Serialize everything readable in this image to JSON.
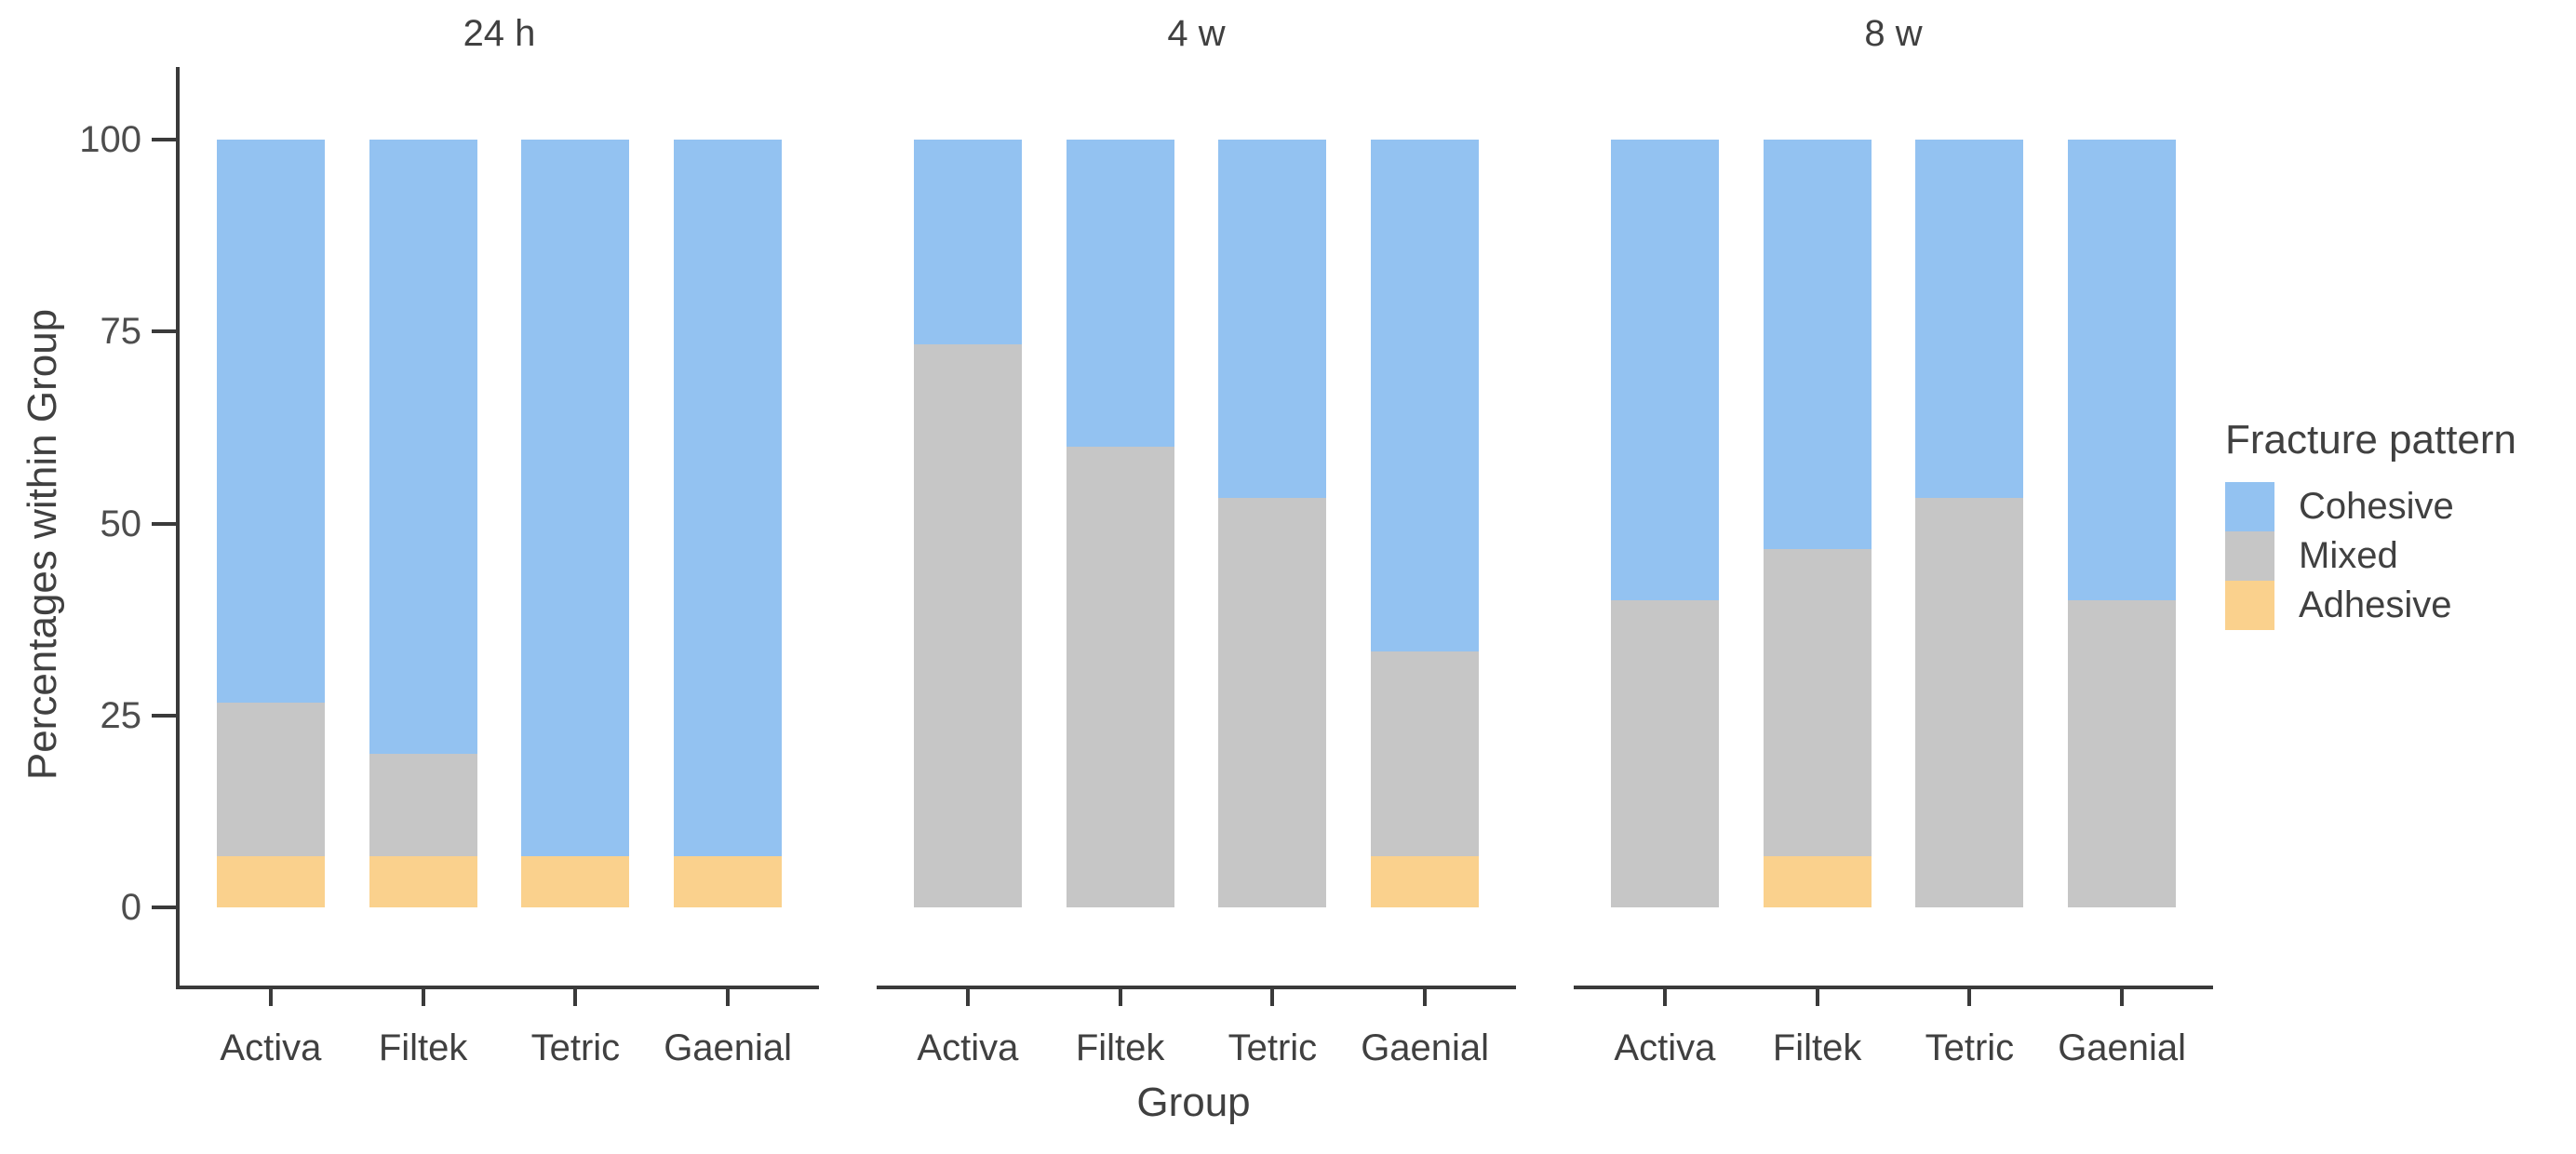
{
  "figure": {
    "background": "#ffffff",
    "axis_color": "#3a3a3a",
    "text_color": "#404040",
    "tick_label_color": "#4d4d4d"
  },
  "chart_data": {
    "type": "bar",
    "stacked": true,
    "orientation": "vertical",
    "ylabel": "Percentages within Group",
    "xlabel": "Group",
    "ylim": [
      0,
      100
    ],
    "y_ticks": [
      100,
      75,
      50,
      25,
      0
    ],
    "y_tick_labels": [
      "100",
      "75",
      "50",
      "25",
      "0"
    ],
    "grid": false,
    "legend_title": "Fracture pattern",
    "legend_position": "right",
    "legend_items": [
      {
        "label": "Cohesive",
        "color": "#93c2f1"
      },
      {
        "label": "Mixed",
        "color": "#c6c6c6"
      },
      {
        "label": "Adhesive",
        "color": "#fad18d"
      }
    ],
    "categories": [
      "Activa",
      "Filtek",
      "Tetric",
      "Gaenial"
    ],
    "facets": [
      {
        "label": "24 h",
        "categories": [
          "Activa",
          "Filtek",
          "Tetric",
          "Gaenial"
        ],
        "series": [
          {
            "name": "Adhesive",
            "color": "#fad18d",
            "values": [
              6.7,
              6.7,
              6.7,
              6.7
            ]
          },
          {
            "name": "Mixed",
            "color": "#c6c6c6",
            "values": [
              20.0,
              13.3,
              0,
              0
            ]
          },
          {
            "name": "Cohesive",
            "color": "#93c2f1",
            "values": [
              73.3,
              80.0,
              93.3,
              93.3
            ]
          }
        ]
      },
      {
        "label": "4 w",
        "categories": [
          "Activa",
          "Filtek",
          "Tetric",
          "Gaenial"
        ],
        "series": [
          {
            "name": "Adhesive",
            "color": "#fad18d",
            "values": [
              0,
              0,
              0,
              6.7
            ]
          },
          {
            "name": "Mixed",
            "color": "#c6c6c6",
            "values": [
              73.3,
              60.0,
              53.3,
              26.7
            ]
          },
          {
            "name": "Cohesive",
            "color": "#93c2f1",
            "values": [
              26.7,
              40.0,
              46.7,
              66.7
            ]
          }
        ]
      },
      {
        "label": "8 w",
        "categories": [
          "Activa",
          "Filtek",
          "Tetric",
          "Gaenial"
        ],
        "series": [
          {
            "name": "Adhesive",
            "color": "#fad18d",
            "values": [
              0,
              6.7,
              0,
              0
            ]
          },
          {
            "name": "Mixed",
            "color": "#c6c6c6",
            "values": [
              40.0,
              40.0,
              53.3,
              40.0
            ]
          },
          {
            "name": "Cohesive",
            "color": "#93c2f1",
            "values": [
              60.0,
              53.3,
              46.7,
              60.0
            ]
          }
        ]
      }
    ]
  }
}
